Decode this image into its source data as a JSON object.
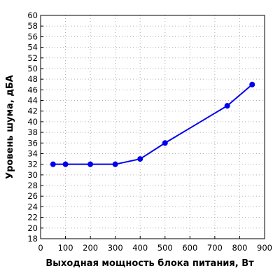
{
  "chart_data": {
    "type": "line",
    "title": "",
    "xlabel": "Выходная мощность блока питания, Вт",
    "ylabel": "Уровень шума, дБА",
    "xlim": [
      0,
      900
    ],
    "ylim": [
      18,
      60
    ],
    "x_ticks": [
      0,
      100,
      200,
      300,
      400,
      500,
      600,
      700,
      800,
      900
    ],
    "y_ticks": [
      18,
      20,
      22,
      24,
      26,
      28,
      30,
      32,
      34,
      36,
      38,
      40,
      42,
      44,
      46,
      48,
      50,
      52,
      54,
      56,
      58,
      60
    ],
    "grid": true,
    "series": [
      {
        "color": "#0000ee",
        "x": [
          50,
          100,
          200,
          300,
          400,
          500,
          750,
          850
        ],
        "y": [
          32,
          32,
          32,
          32,
          33,
          36,
          43,
          47
        ]
      }
    ]
  }
}
